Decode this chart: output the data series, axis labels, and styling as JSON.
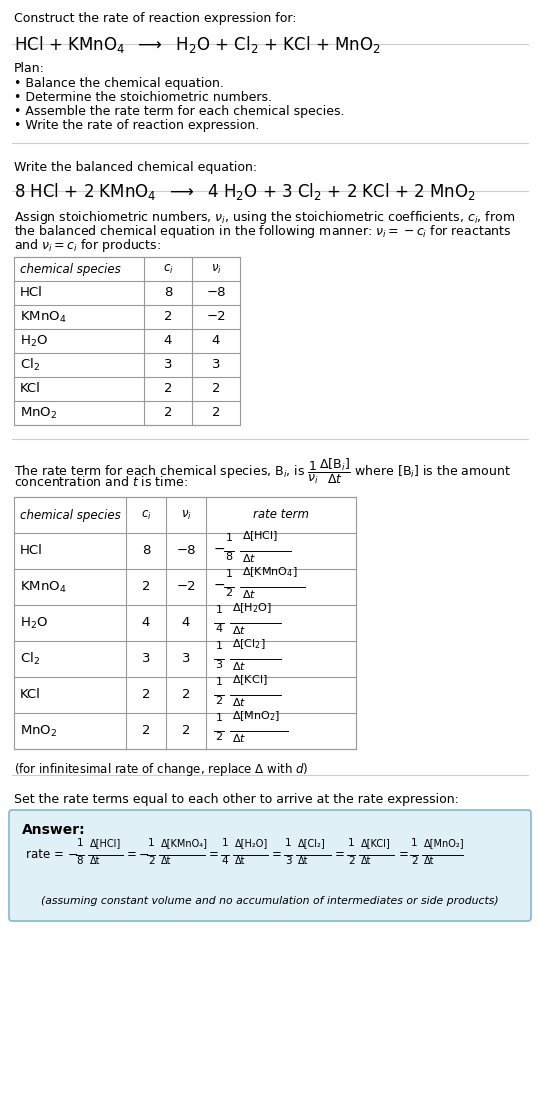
{
  "title_line1": "Construct the rate of reaction expression for:",
  "reaction_unbalanced": "HCl + KMnO$_4$  $\\longrightarrow$  H$_2$O + Cl$_2$ + KCl + MnO$_2$",
  "plan_header": "Plan:",
  "plan_items": [
    "Balance the chemical equation.",
    "Determine the stoichiometric numbers.",
    "Assemble the rate term for each chemical species.",
    "Write the rate of reaction expression."
  ],
  "balanced_header": "Write the balanced chemical equation:",
  "reaction_balanced": "8 HCl + 2 KMnO$_4$  $\\longrightarrow$  4 H$_2$O + 3 Cl$_2$ + 2 KCl + 2 MnO$_2$",
  "stoich_intro_lines": [
    "Assign stoichiometric numbers, $\\nu_i$, using the stoichiometric coefficients, $c_i$, from",
    "the balanced chemical equation in the following manner: $\\nu_i = -c_i$ for reactants",
    "and $\\nu_i = c_i$ for products:"
  ],
  "table1_headers": [
    "chemical species",
    "$c_i$",
    "$\\nu_i$"
  ],
  "table1_species": [
    "HCl",
    "KMnO$_4$",
    "H$_2$O",
    "Cl$_2$",
    "KCl",
    "MnO$_2$"
  ],
  "table1_ci": [
    "8",
    "2",
    "4",
    "3",
    "2",
    "2"
  ],
  "table1_vi": [
    "−8",
    "−2",
    "4",
    "3",
    "2",
    "2"
  ],
  "rate_term_intro_lines": [
    "The rate term for each chemical species, B$_i$, is $\\dfrac{1}{\\nu_i}\\dfrac{\\Delta[\\mathrm{B}_i]}{\\Delta t}$ where [B$_i$] is the amount",
    "concentration and $t$ is time:"
  ],
  "table2_headers": [
    "chemical species",
    "$c_i$",
    "$\\nu_i$",
    "rate term"
  ],
  "table2_species": [
    "HCl",
    "KMnO$_4$",
    "H$_2$O",
    "Cl$_2$",
    "KCl",
    "MnO$_2$"
  ],
  "table2_ci": [
    "8",
    "2",
    "4",
    "3",
    "2",
    "2"
  ],
  "table2_vi": [
    "−8",
    "−2",
    "4",
    "3",
    "2",
    "2"
  ],
  "table2_rate_sign": [
    "−",
    "−",
    "",
    "",
    "",
    ""
  ],
  "table2_rate_num": [
    "1",
    "1",
    "1",
    "1",
    "1",
    "1"
  ],
  "table2_rate_den": [
    "8",
    "2",
    "4",
    "3",
    "2",
    "2"
  ],
  "table2_rate_species": [
    "[HCl]",
    "[KMnO$_4$]",
    "[H$_2$O]",
    "[Cl$_2$]",
    "[KCl]",
    "[MnO$_2$]"
  ],
  "infinitesimal_note": "(for infinitesimal rate of change, replace Δ with $d$)",
  "set_equal_text": "Set the rate terms equal to each other to arrive at the rate expression:",
  "answer_label": "Answer:",
  "answer_box_color": "#dff0f7",
  "answer_box_border": "#7fb8d4",
  "assuming_note": "(assuming constant volume and no accumulation of intermediates or side products)",
  "bg_color": "#ffffff",
  "text_color": "#000000",
  "table_border_color": "#999999",
  "separator_color": "#cccccc"
}
